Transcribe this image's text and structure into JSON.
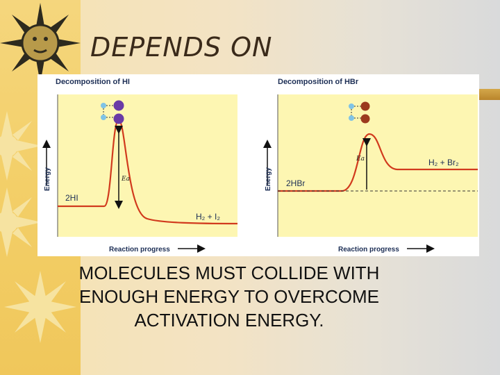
{
  "slide": {
    "title": "DEPENDS ON",
    "caption_lines": [
      "MOLECULES MUST COLLIDE WITH",
      "ENOUGH ENERGY TO OVERCOME",
      "ACTIVATION ENERGY."
    ]
  },
  "diagram": {
    "panels": [
      {
        "title": "Decomposition of HI",
        "y_label": "Energy",
        "x_label": "Reaction progress",
        "reactant_label": "2HI",
        "product_label": "H₂ + I₂",
        "ea_label": "Ea",
        "molecule_color": "#6a3aa6"
      },
      {
        "title": "Decomposition of HBr",
        "y_label": "Energy",
        "x_label": "Reaction progress",
        "reactant_label": "2HBr",
        "product_label": "H₂ + Br₂",
        "ea_label": "Ea",
        "molecule_color": "#9c3a1e"
      }
    ],
    "colors": {
      "plot_bg": "#fdf6b2",
      "curve": "#d13a1d",
      "hydrogen_atom": "#7fc3e6"
    }
  }
}
